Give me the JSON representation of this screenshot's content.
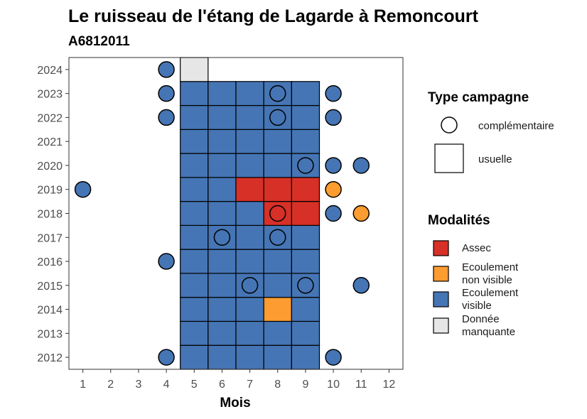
{
  "chart_data": {
    "type": "heatmap",
    "title": "Le ruisseau de l'étang de Lagarde à Remoncourt",
    "subtitle": "A6812011",
    "xlabel": "Mois",
    "ylabel": "",
    "x_ticks": [
      1,
      2,
      3,
      4,
      5,
      6,
      7,
      8,
      9,
      10,
      11,
      12
    ],
    "y_ticks": [
      2012,
      2013,
      2014,
      2015,
      2016,
      2017,
      2018,
      2019,
      2020,
      2021,
      2022,
      2023,
      2024
    ],
    "xlim": [
      0.5,
      12.5
    ],
    "ylim": [
      2011.5,
      2024.5
    ],
    "colors": {
      "Assec": "#d73027",
      "Ecoulement non visible": "#fd9c30",
      "Ecoulement visible": "#4575b4",
      "Donnée manquante": "#e6e6e6"
    },
    "legend": {
      "shape_title": "Type campagne",
      "shape_items": [
        {
          "key": "complementaire",
          "label": "complémentaire",
          "shape": "circle"
        },
        {
          "key": "usuelle",
          "label": "usuelle",
          "shape": "square"
        }
      ],
      "color_title": "Modalités",
      "color_items": [
        {
          "key": "Assec",
          "lines": [
            "Assec"
          ]
        },
        {
          "key": "Ecoulement non visible",
          "lines": [
            "Ecoulement",
            "non visible"
          ]
        },
        {
          "key": "Ecoulement visible",
          "lines": [
            "Ecoulement",
            "visible"
          ]
        },
        {
          "key": "Donnée manquante",
          "lines": [
            "Donnée",
            "manquante"
          ]
        }
      ]
    },
    "usuelle": [
      {
        "year": 2012,
        "month": 5,
        "m": "Ecoulement visible"
      },
      {
        "year": 2012,
        "month": 6,
        "m": "Ecoulement visible"
      },
      {
        "year": 2012,
        "month": 7,
        "m": "Ecoulement visible"
      },
      {
        "year": 2012,
        "month": 8,
        "m": "Ecoulement visible"
      },
      {
        "year": 2012,
        "month": 9,
        "m": "Ecoulement visible"
      },
      {
        "year": 2013,
        "month": 5,
        "m": "Ecoulement visible"
      },
      {
        "year": 2013,
        "month": 6,
        "m": "Ecoulement visible"
      },
      {
        "year": 2013,
        "month": 7,
        "m": "Ecoulement visible"
      },
      {
        "year": 2013,
        "month": 8,
        "m": "Ecoulement visible"
      },
      {
        "year": 2013,
        "month": 9,
        "m": "Ecoulement visible"
      },
      {
        "year": 2014,
        "month": 5,
        "m": "Ecoulement visible"
      },
      {
        "year": 2014,
        "month": 6,
        "m": "Ecoulement visible"
      },
      {
        "year": 2014,
        "month": 7,
        "m": "Ecoulement visible"
      },
      {
        "year": 2014,
        "month": 8,
        "m": "Ecoulement non visible"
      },
      {
        "year": 2014,
        "month": 9,
        "m": "Ecoulement visible"
      },
      {
        "year": 2015,
        "month": 5,
        "m": "Ecoulement visible"
      },
      {
        "year": 2015,
        "month": 6,
        "m": "Ecoulement visible"
      },
      {
        "year": 2015,
        "month": 7,
        "m": "Ecoulement visible"
      },
      {
        "year": 2015,
        "month": 8,
        "m": "Ecoulement visible"
      },
      {
        "year": 2015,
        "month": 9,
        "m": "Ecoulement visible"
      },
      {
        "year": 2016,
        "month": 5,
        "m": "Ecoulement visible"
      },
      {
        "year": 2016,
        "month": 6,
        "m": "Ecoulement visible"
      },
      {
        "year": 2016,
        "month": 7,
        "m": "Ecoulement visible"
      },
      {
        "year": 2016,
        "month": 8,
        "m": "Ecoulement visible"
      },
      {
        "year": 2016,
        "month": 9,
        "m": "Ecoulement visible"
      },
      {
        "year": 2017,
        "month": 5,
        "m": "Ecoulement visible"
      },
      {
        "year": 2017,
        "month": 6,
        "m": "Ecoulement visible"
      },
      {
        "year": 2017,
        "month": 7,
        "m": "Ecoulement visible"
      },
      {
        "year": 2017,
        "month": 8,
        "m": "Ecoulement visible"
      },
      {
        "year": 2017,
        "month": 9,
        "m": "Ecoulement visible"
      },
      {
        "year": 2018,
        "month": 5,
        "m": "Ecoulement visible"
      },
      {
        "year": 2018,
        "month": 6,
        "m": "Ecoulement visible"
      },
      {
        "year": 2018,
        "month": 7,
        "m": "Ecoulement visible"
      },
      {
        "year": 2018,
        "month": 8,
        "m": "Assec"
      },
      {
        "year": 2018,
        "month": 9,
        "m": "Assec"
      },
      {
        "year": 2019,
        "month": 5,
        "m": "Ecoulement visible"
      },
      {
        "year": 2019,
        "month": 6,
        "m": "Ecoulement visible"
      },
      {
        "year": 2019,
        "month": 7,
        "m": "Assec"
      },
      {
        "year": 2019,
        "month": 8,
        "m": "Assec"
      },
      {
        "year": 2019,
        "month": 9,
        "m": "Assec"
      },
      {
        "year": 2020,
        "month": 5,
        "m": "Ecoulement visible"
      },
      {
        "year": 2020,
        "month": 6,
        "m": "Ecoulement visible"
      },
      {
        "year": 2020,
        "month": 7,
        "m": "Ecoulement visible"
      },
      {
        "year": 2020,
        "month": 8,
        "m": "Ecoulement visible"
      },
      {
        "year": 2020,
        "month": 9,
        "m": "Ecoulement visible"
      },
      {
        "year": 2021,
        "month": 5,
        "m": "Ecoulement visible"
      },
      {
        "year": 2021,
        "month": 6,
        "m": "Ecoulement visible"
      },
      {
        "year": 2021,
        "month": 7,
        "m": "Ecoulement visible"
      },
      {
        "year": 2021,
        "month": 8,
        "m": "Ecoulement visible"
      },
      {
        "year": 2021,
        "month": 9,
        "m": "Ecoulement visible"
      },
      {
        "year": 2022,
        "month": 5,
        "m": "Ecoulement visible"
      },
      {
        "year": 2022,
        "month": 6,
        "m": "Ecoulement visible"
      },
      {
        "year": 2022,
        "month": 7,
        "m": "Ecoulement visible"
      },
      {
        "year": 2022,
        "month": 8,
        "m": "Ecoulement visible"
      },
      {
        "year": 2022,
        "month": 9,
        "m": "Ecoulement visible"
      },
      {
        "year": 2023,
        "month": 5,
        "m": "Ecoulement visible"
      },
      {
        "year": 2023,
        "month": 6,
        "m": "Ecoulement visible"
      },
      {
        "year": 2023,
        "month": 7,
        "m": "Ecoulement visible"
      },
      {
        "year": 2023,
        "month": 8,
        "m": "Ecoulement visible"
      },
      {
        "year": 2023,
        "month": 9,
        "m": "Ecoulement visible"
      },
      {
        "year": 2024,
        "month": 5,
        "m": "Donnée manquante"
      }
    ],
    "complementaire": [
      {
        "year": 2012,
        "month": 4,
        "m": "Ecoulement visible"
      },
      {
        "year": 2012,
        "month": 10,
        "m": "Ecoulement visible"
      },
      {
        "year": 2015,
        "month": 7,
        "m": "Ecoulement visible"
      },
      {
        "year": 2015,
        "month": 9,
        "m": "Ecoulement visible"
      },
      {
        "year": 2015,
        "month": 11,
        "m": "Ecoulement visible"
      },
      {
        "year": 2016,
        "month": 4,
        "m": "Ecoulement visible"
      },
      {
        "year": 2017,
        "month": 6,
        "m": "Ecoulement visible"
      },
      {
        "year": 2017,
        "month": 8,
        "m": "Ecoulement visible"
      },
      {
        "year": 2018,
        "month": 8,
        "m": "Assec"
      },
      {
        "year": 2018,
        "month": 10,
        "m": "Ecoulement visible"
      },
      {
        "year": 2018,
        "month": 11,
        "m": "Ecoulement non visible"
      },
      {
        "year": 2019,
        "month": 1,
        "m": "Ecoulement visible"
      },
      {
        "year": 2019,
        "month": 10,
        "m": "Ecoulement non visible"
      },
      {
        "year": 2020,
        "month": 9,
        "m": "Ecoulement visible"
      },
      {
        "year": 2020,
        "month": 10,
        "m": "Ecoulement visible"
      },
      {
        "year": 2020,
        "month": 11,
        "m": "Ecoulement visible"
      },
      {
        "year": 2022,
        "month": 4,
        "m": "Ecoulement visible"
      },
      {
        "year": 2022,
        "month": 8,
        "m": "Ecoulement visible"
      },
      {
        "year": 2022,
        "month": 10,
        "m": "Ecoulement visible"
      },
      {
        "year": 2023,
        "month": 4,
        "m": "Ecoulement visible"
      },
      {
        "year": 2023,
        "month": 8,
        "m": "Ecoulement visible"
      },
      {
        "year": 2023,
        "month": 10,
        "m": "Ecoulement visible"
      },
      {
        "year": 2024,
        "month": 4,
        "m": "Ecoulement visible"
      }
    ]
  }
}
